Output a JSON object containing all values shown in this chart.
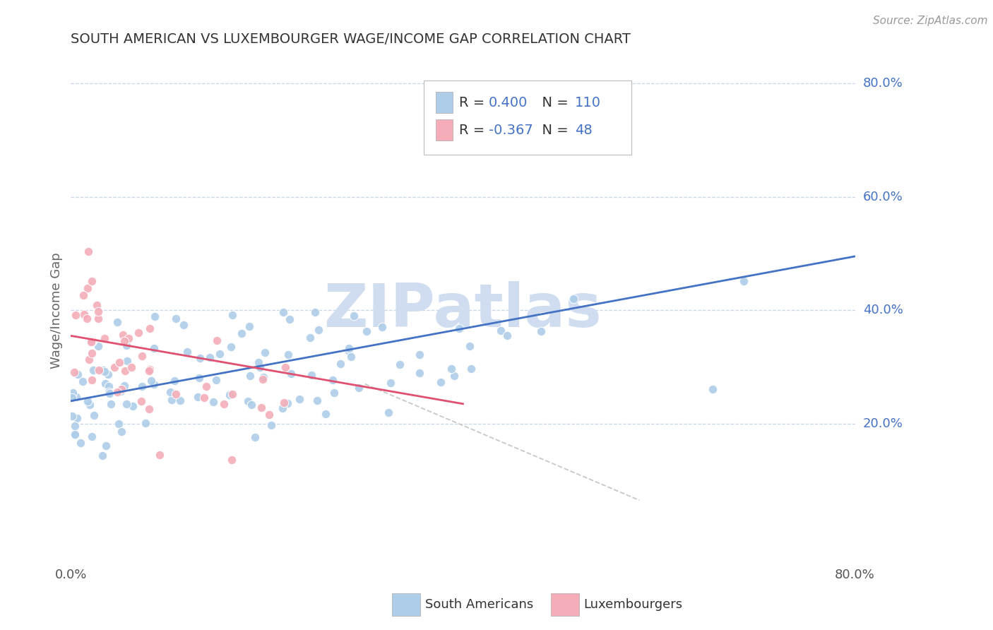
{
  "title": "SOUTH AMERICAN VS LUXEMBOURGER WAGE/INCOME GAP CORRELATION CHART",
  "source": "Source: ZipAtlas.com",
  "ylabel": "Wage/Income Gap",
  "xlim": [
    0.0,
    0.8
  ],
  "ylim": [
    -0.05,
    0.85
  ],
  "xtick_labels": [
    "0.0%",
    "80.0%"
  ],
  "xtick_vals": [
    0.0,
    0.8
  ],
  "ytick_labels": [
    "80.0%",
    "60.0%",
    "40.0%",
    "20.0%"
  ],
  "ytick_vals": [
    0.8,
    0.6,
    0.4,
    0.2
  ],
  "grid_ytick_vals": [
    0.8,
    0.6,
    0.4,
    0.2
  ],
  "legend_entries": [
    {
      "label": "South Americans",
      "color": "#aecde8",
      "R": "0.400",
      "N": "110"
    },
    {
      "label": "Luxembourgers",
      "color": "#f4adb8",
      "R": "-0.367",
      "N": "48"
    }
  ],
  "blue_scatter_color": "#aecde8",
  "pink_scatter_color": "#f4adb8",
  "blue_line_color": "#4472c4",
  "pink_line_color": "#e05070",
  "dashed_line_color": "#c8c8c8",
  "grid_color": "#c8d4e8",
  "grid_linestyle": "--",
  "background_color": "#ffffff",
  "title_color": "#333333",
  "watermark_text": "ZIPatlas",
  "watermark_color": "#d0ddf0",
  "R_blue": 0.4,
  "N_blue": 110,
  "R_pink": -0.367,
  "N_pink": 48,
  "blue_line_x": [
    0.0,
    0.8
  ],
  "blue_line_y": [
    0.24,
    0.495
  ],
  "pink_line_x": [
    0.0,
    0.4
  ],
  "pink_line_y": [
    0.355,
    0.235
  ],
  "dashed_line_x": [
    0.3,
    0.58
  ],
  "dashed_line_y": [
    0.27,
    0.065
  ],
  "seed": 42
}
